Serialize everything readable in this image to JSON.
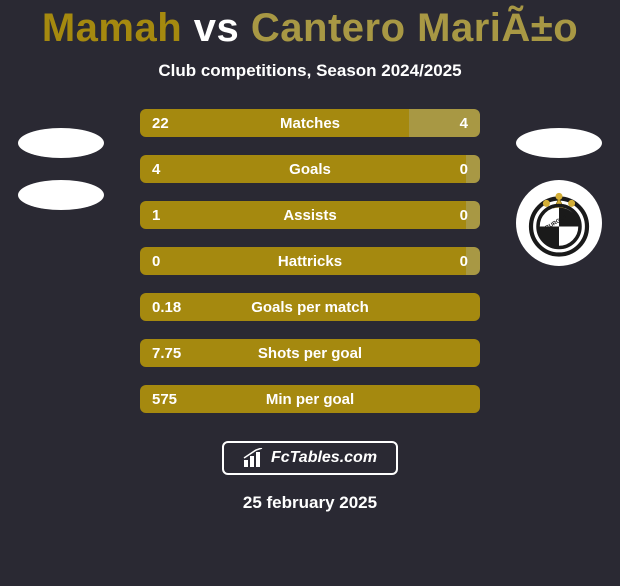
{
  "colors": {
    "page_bg": "#2a2933",
    "accent_left": "#a5890f",
    "accent_right": "#a89844",
    "player1": "#a5890f",
    "player2": "#a89844",
    "text": "#ffffff"
  },
  "header": {
    "player1": "Mamah",
    "vs": "vs",
    "player2": "Cantero MariÃ±o",
    "subtitle": "Club competitions, Season 2024/2025"
  },
  "stats": {
    "rows": [
      {
        "label": "Matches",
        "left": "22",
        "right": "4",
        "left_pct": 79,
        "right_pct": 21
      },
      {
        "label": "Goals",
        "left": "4",
        "right": "0",
        "left_pct": 96,
        "right_pct": 4
      },
      {
        "label": "Assists",
        "left": "1",
        "right": "0",
        "left_pct": 96,
        "right_pct": 4
      },
      {
        "label": "Hattricks",
        "left": "0",
        "right": "0",
        "left_pct": 96,
        "right_pct": 4
      },
      {
        "label": "Goals per match",
        "left": "0.18",
        "right": "",
        "left_pct": 100,
        "right_pct": 0
      },
      {
        "label": "Shots per goal",
        "left": "7.75",
        "right": "",
        "left_pct": 100,
        "right_pct": 0
      },
      {
        "label": "Min per goal",
        "left": "575",
        "right": "",
        "left_pct": 100,
        "right_pct": 0
      }
    ]
  },
  "brand": {
    "name": "FcTables.com"
  },
  "footer": {
    "date": "25 february 2025"
  }
}
